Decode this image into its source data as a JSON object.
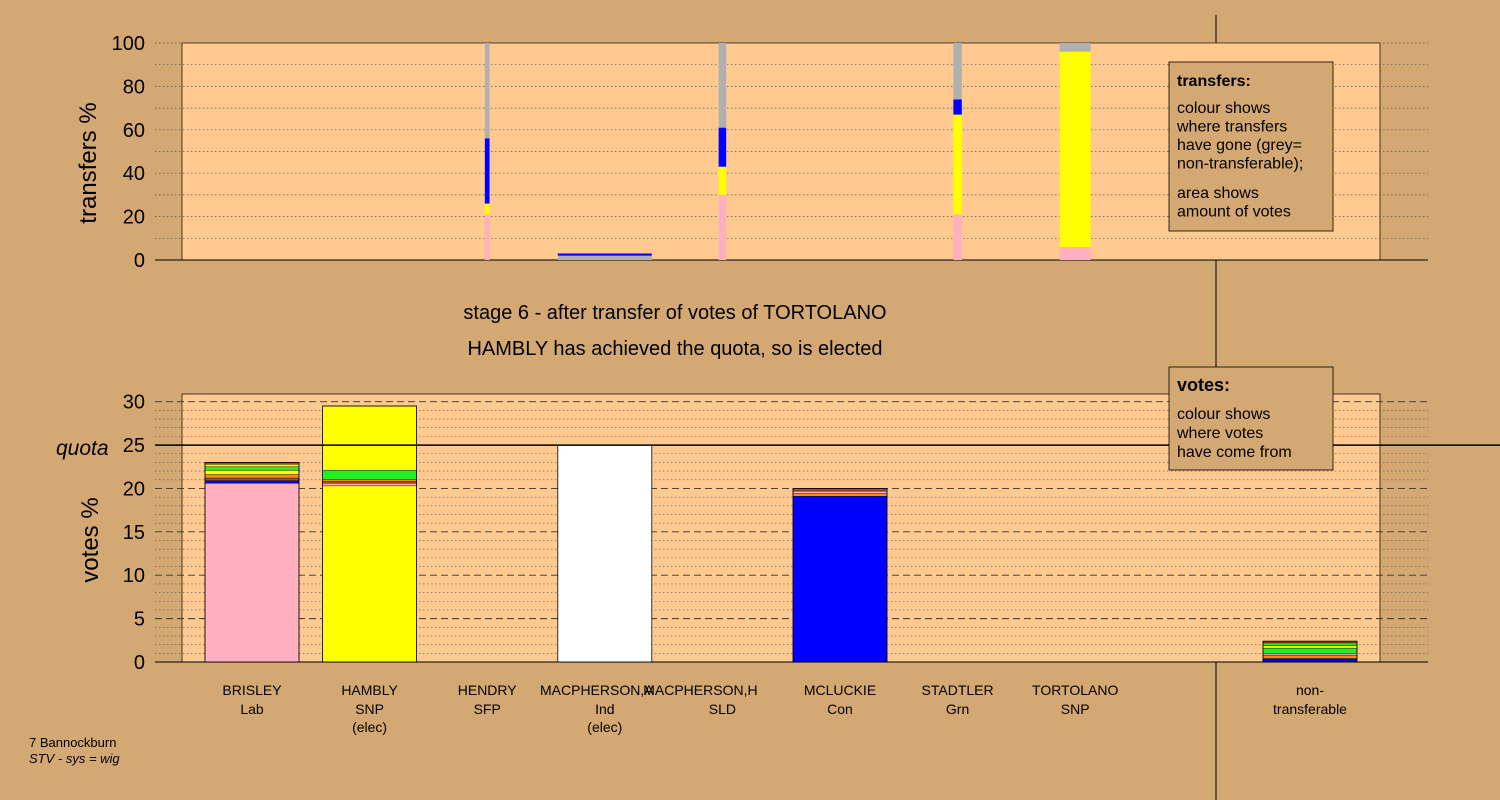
{
  "caption": {
    "line1": "stage 6 - after transfer of votes of TORTOLANO",
    "line2": "HAMBLY has achieved the quota, so is elected"
  },
  "footer": {
    "constituency": "7 Bannockburn",
    "system": "STV - sys = wig"
  },
  "colors": {
    "background": "#d4a872",
    "plot_background": "#ffc98f",
    "Lab": "#ffb0c0",
    "SNP": "#ffff00",
    "Ind": "#ffffff",
    "Con": "#0000ff",
    "Grn": "#22ee22",
    "SLD": "#ff8c00",
    "SFP": "#a0522d",
    "nontransferable": "#b0b0b0"
  },
  "chart_data": [
    {
      "type": "bar",
      "name": "transfers",
      "ylabel": "transfers %",
      "ylim": [
        0,
        100
      ],
      "yticks": [
        0,
        20,
        40,
        60,
        80,
        100
      ],
      "legend": {
        "title": "transfers:",
        "lines": [
          "colour shows",
          "where transfers",
          "have gone (grey=",
          "non-transferable);"
        ],
        "lines2": [
          "area shows",
          "amount of votes"
        ]
      },
      "bars": [
        {
          "column": "HENDRY",
          "width": 0.05,
          "segments": [
            {
              "party": "Lab",
              "value": 21
            },
            {
              "party": "SNP",
              "value": 5
            },
            {
              "party": "Con",
              "value": 30
            },
            {
              "party": "nontransferable",
              "value": 44
            }
          ]
        },
        {
          "column": "MACPHERSON,A",
          "width": 1.0,
          "segments": [
            {
              "party": "nontransferable",
              "value": 2
            },
            {
              "party": "Con",
              "value": 1
            }
          ]
        },
        {
          "column": "MACPHERSON,H",
          "width": 0.08,
          "segments": [
            {
              "party": "Lab",
              "value": 30
            },
            {
              "party": "SNP",
              "value": 13
            },
            {
              "party": "Con",
              "value": 18
            },
            {
              "party": "nontransferable",
              "value": 39
            }
          ]
        },
        {
          "column": "STADTLER",
          "width": 0.09,
          "segments": [
            {
              "party": "Lab",
              "value": 21
            },
            {
              "party": "SNP",
              "value": 46
            },
            {
              "party": "Con",
              "value": 7
            },
            {
              "party": "nontransferable",
              "value": 26
            }
          ]
        },
        {
          "column": "TORTOLANO",
          "width": 0.33,
          "segments": [
            {
              "party": "Lab",
              "value": 6
            },
            {
              "party": "SNP",
              "value": 90
            },
            {
              "party": "nontransferable",
              "value": 4
            }
          ]
        }
      ]
    },
    {
      "type": "bar",
      "name": "votes",
      "ylabel": "votes %",
      "ylim": [
        0,
        30
      ],
      "yticks": [
        0,
        5,
        10,
        15,
        20,
        25,
        30
      ],
      "quota": 25,
      "quota_label": "quota",
      "legend": {
        "title": "votes:",
        "lines": [
          "colour shows",
          "where votes",
          "have come from"
        ]
      },
      "categories": [
        {
          "name": "BRISLEY",
          "party": "Lab",
          "status": ""
        },
        {
          "name": "HAMBLY",
          "party": "SNP",
          "status": "(elec)"
        },
        {
          "name": "HENDRY",
          "party": "SFP",
          "status": ""
        },
        {
          "name": "MACPHERSON,A",
          "party": "Ind",
          "status": "(elec)"
        },
        {
          "name": "MACPHERSON,H",
          "party": "SLD",
          "status": ""
        },
        {
          "name": "MCLUCKIE",
          "party": "Con",
          "status": ""
        },
        {
          "name": "STADTLER",
          "party": "Grn",
          "status": ""
        },
        {
          "name": "TORTOLANO",
          "party": "SNP",
          "status": ""
        }
      ],
      "extra_category": {
        "name": "non-",
        "party": "transferable"
      },
      "stacks": [
        [
          {
            "party": "Lab",
            "value": 20.6
          },
          {
            "party": "Con",
            "value": 0.3
          },
          {
            "party": "SFP",
            "value": 0.3
          },
          {
            "party": "SLD",
            "value": 0.4
          },
          {
            "party": "SNP",
            "value": 0.5
          },
          {
            "party": "Grn",
            "value": 0.4
          },
          {
            "party": "SNP",
            "value": 0.3
          },
          {
            "party": "SFP",
            "value": 0.2
          }
        ],
        [
          {
            "party": "SNP",
            "value": 20.3
          },
          {
            "party": "Lab",
            "value": 0.3
          },
          {
            "party": "SFP",
            "value": 0.2
          },
          {
            "party": "SLD",
            "value": 0.2
          },
          {
            "party": "Grn",
            "value": 1.1
          },
          {
            "party": "SNP",
            "value": 7.4
          }
        ],
        [],
        [
          {
            "party": "Ind",
            "value": 25.0
          }
        ],
        [],
        [
          {
            "party": "Con",
            "value": 19.1
          },
          {
            "party": "SLD",
            "value": 0.3
          },
          {
            "party": "Lab",
            "value": 0.3
          },
          {
            "party": "SFP",
            "value": 0.3
          }
        ],
        [],
        [],
        [
          {
            "party": "Con",
            "value": 0.4
          },
          {
            "party": "SLD",
            "value": 0.4
          },
          {
            "party": "Lab",
            "value": 0.2
          },
          {
            "party": "Grn",
            "value": 0.6
          },
          {
            "party": "SNP",
            "value": 0.3
          },
          {
            "party": "Grn",
            "value": 0.3
          },
          {
            "party": "SFP",
            "value": 0.2
          }
        ]
      ]
    }
  ]
}
